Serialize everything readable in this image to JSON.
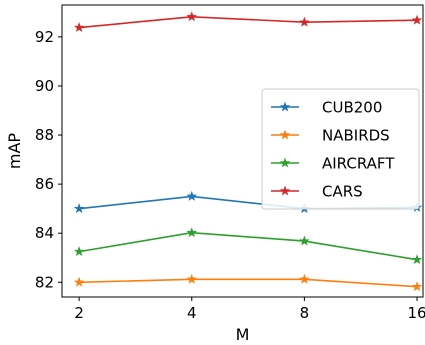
{
  "chart_data": {
    "type": "line",
    "title": "",
    "xlabel": "M",
    "ylabel": "mAP",
    "categories": [
      "2",
      "4",
      "8",
      "16"
    ],
    "xlim": [
      1.8,
      16.6
    ],
    "ylim": [
      81.4,
      93.3
    ],
    "yticks": [
      82,
      84,
      86,
      88,
      90,
      92
    ],
    "grid": false,
    "legend_position": "center-right",
    "series": [
      {
        "name": "CUB200",
        "color": "#1f77b4",
        "marker": "star",
        "values": [
          85.0,
          85.5,
          85.0,
          85.05
        ]
      },
      {
        "name": "NABIRDS",
        "color": "#ff7f0e",
        "marker": "star",
        "values": [
          82.0,
          82.12,
          82.12,
          81.82
        ]
      },
      {
        "name": "AIRCRAFT",
        "color": "#2ca02c",
        "marker": "star",
        "values": [
          83.25,
          84.02,
          83.68,
          82.92
        ]
      },
      {
        "name": "CARS",
        "color": "#d62728",
        "marker": "star",
        "values": [
          92.38,
          92.82,
          92.6,
          92.68
        ]
      }
    ]
  }
}
